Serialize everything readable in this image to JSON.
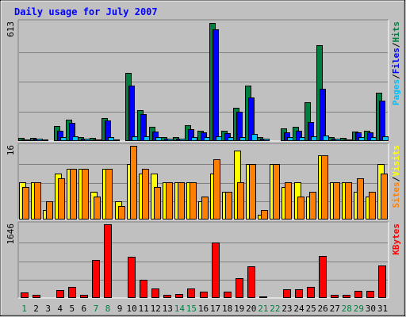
{
  "chart_data": {
    "type": "bar",
    "title": "Daily usage for July 2007",
    "x": [
      "1",
      "2",
      "3",
      "4",
      "5",
      "6",
      "7",
      "8",
      "9",
      "10",
      "11",
      "12",
      "13",
      "14",
      "15",
      "16",
      "17",
      "18",
      "19",
      "20",
      "21",
      "22",
      "23",
      "24",
      "25",
      "26",
      "27",
      "28",
      "29",
      "30",
      "31"
    ],
    "weekend_days": [
      "1",
      "7",
      "8",
      "14",
      "15",
      "21",
      "22",
      "28",
      "29"
    ],
    "panels": [
      {
        "name": "pages-files-hits",
        "max_label": "613",
        "ymax": 613,
        "labels": [
          {
            "text": "Pages",
            "color": "#00c0ff"
          },
          {
            "text": "/",
            "color": "#000000"
          },
          {
            "text": "Files",
            "color": "#0000ff"
          },
          {
            "text": "/",
            "color": "#000000"
          },
          {
            "text": "Hits",
            "color": "#008040"
          }
        ],
        "series": [
          {
            "name": "Hits",
            "color": "#008040",
            "values": [
              15,
              18,
              8,
              78,
              110,
              20,
              15,
              120,
              8,
              350,
              160,
              75,
              20,
              20,
              80,
              55,
              610,
              55,
              170,
              285,
              20,
              5,
              65,
              75,
              200,
              495,
              20,
              15,
              50,
              55,
              250
            ]
          },
          {
            "name": "Files",
            "color": "#0000ff",
            "values": [
              10,
              12,
              5,
              55,
              92,
              12,
              10,
              105,
              5,
              285,
              140,
              50,
              12,
              12,
              60,
              45,
              575,
              40,
              150,
              225,
              12,
              3,
              45,
              55,
              100,
              270,
              12,
              8,
              45,
              45,
              210
            ]
          },
          {
            "name": "Pages",
            "color": "#00c0ff",
            "values": [
              10,
              12,
              5,
              20,
              25,
              12,
              10,
              20,
              5,
              25,
              25,
              20,
              12,
              12,
              20,
              20,
              25,
              20,
              20,
              35,
              12,
              3,
              20,
              20,
              25,
              30,
              12,
              8,
              20,
              20,
              25
            ]
          }
        ]
      },
      {
        "name": "sites-visits",
        "max_label": "16",
        "ymax": 16,
        "labels": [
          {
            "text": "Sites",
            "color": "#ff8000"
          },
          {
            "text": "/",
            "color": "#000000"
          },
          {
            "text": "Visits",
            "color": "#ffff00"
          }
        ],
        "series": [
          {
            "name": "Visits",
            "color": "#ffff00",
            "values": [
              8,
              8,
              2,
              10,
              11,
              11,
              6,
              11,
              4,
              12,
              10,
              10,
              8,
              8,
              8,
              4,
              10,
              6,
              15,
              12,
              1,
              12,
              7,
              8,
              5,
              14,
              8,
              8,
              6,
              5,
              12
            ]
          },
          {
            "name": "Sites",
            "color": "#ff8000",
            "values": [
              7,
              8,
              4,
              9,
              11,
              11,
              5,
              11,
              3,
              16,
              11,
              7,
              8,
              8,
              8,
              5,
              13,
              6,
              8,
              12,
              2,
              12,
              8,
              5,
              6,
              14,
              8,
              8,
              9,
              6,
              10
            ]
          }
        ]
      },
      {
        "name": "kbytes",
        "max_label": "1646",
        "ymax": 1646,
        "labels": [
          {
            "text": "KBytes",
            "color": "#ff0000"
          }
        ],
        "series": [
          {
            "name": "KBytes",
            "color": "#ff0000",
            "values": [
              130,
              75,
              25,
              185,
              255,
              70,
              845,
              1646,
              25,
              920,
              415,
              205,
              70,
              90,
              205,
              150,
              1240,
              140,
              440,
              710,
              40,
              20,
              200,
              200,
              240,
              945,
              70,
              65,
              165,
              165,
              720
            ]
          }
        ]
      }
    ],
    "grid": true
  }
}
